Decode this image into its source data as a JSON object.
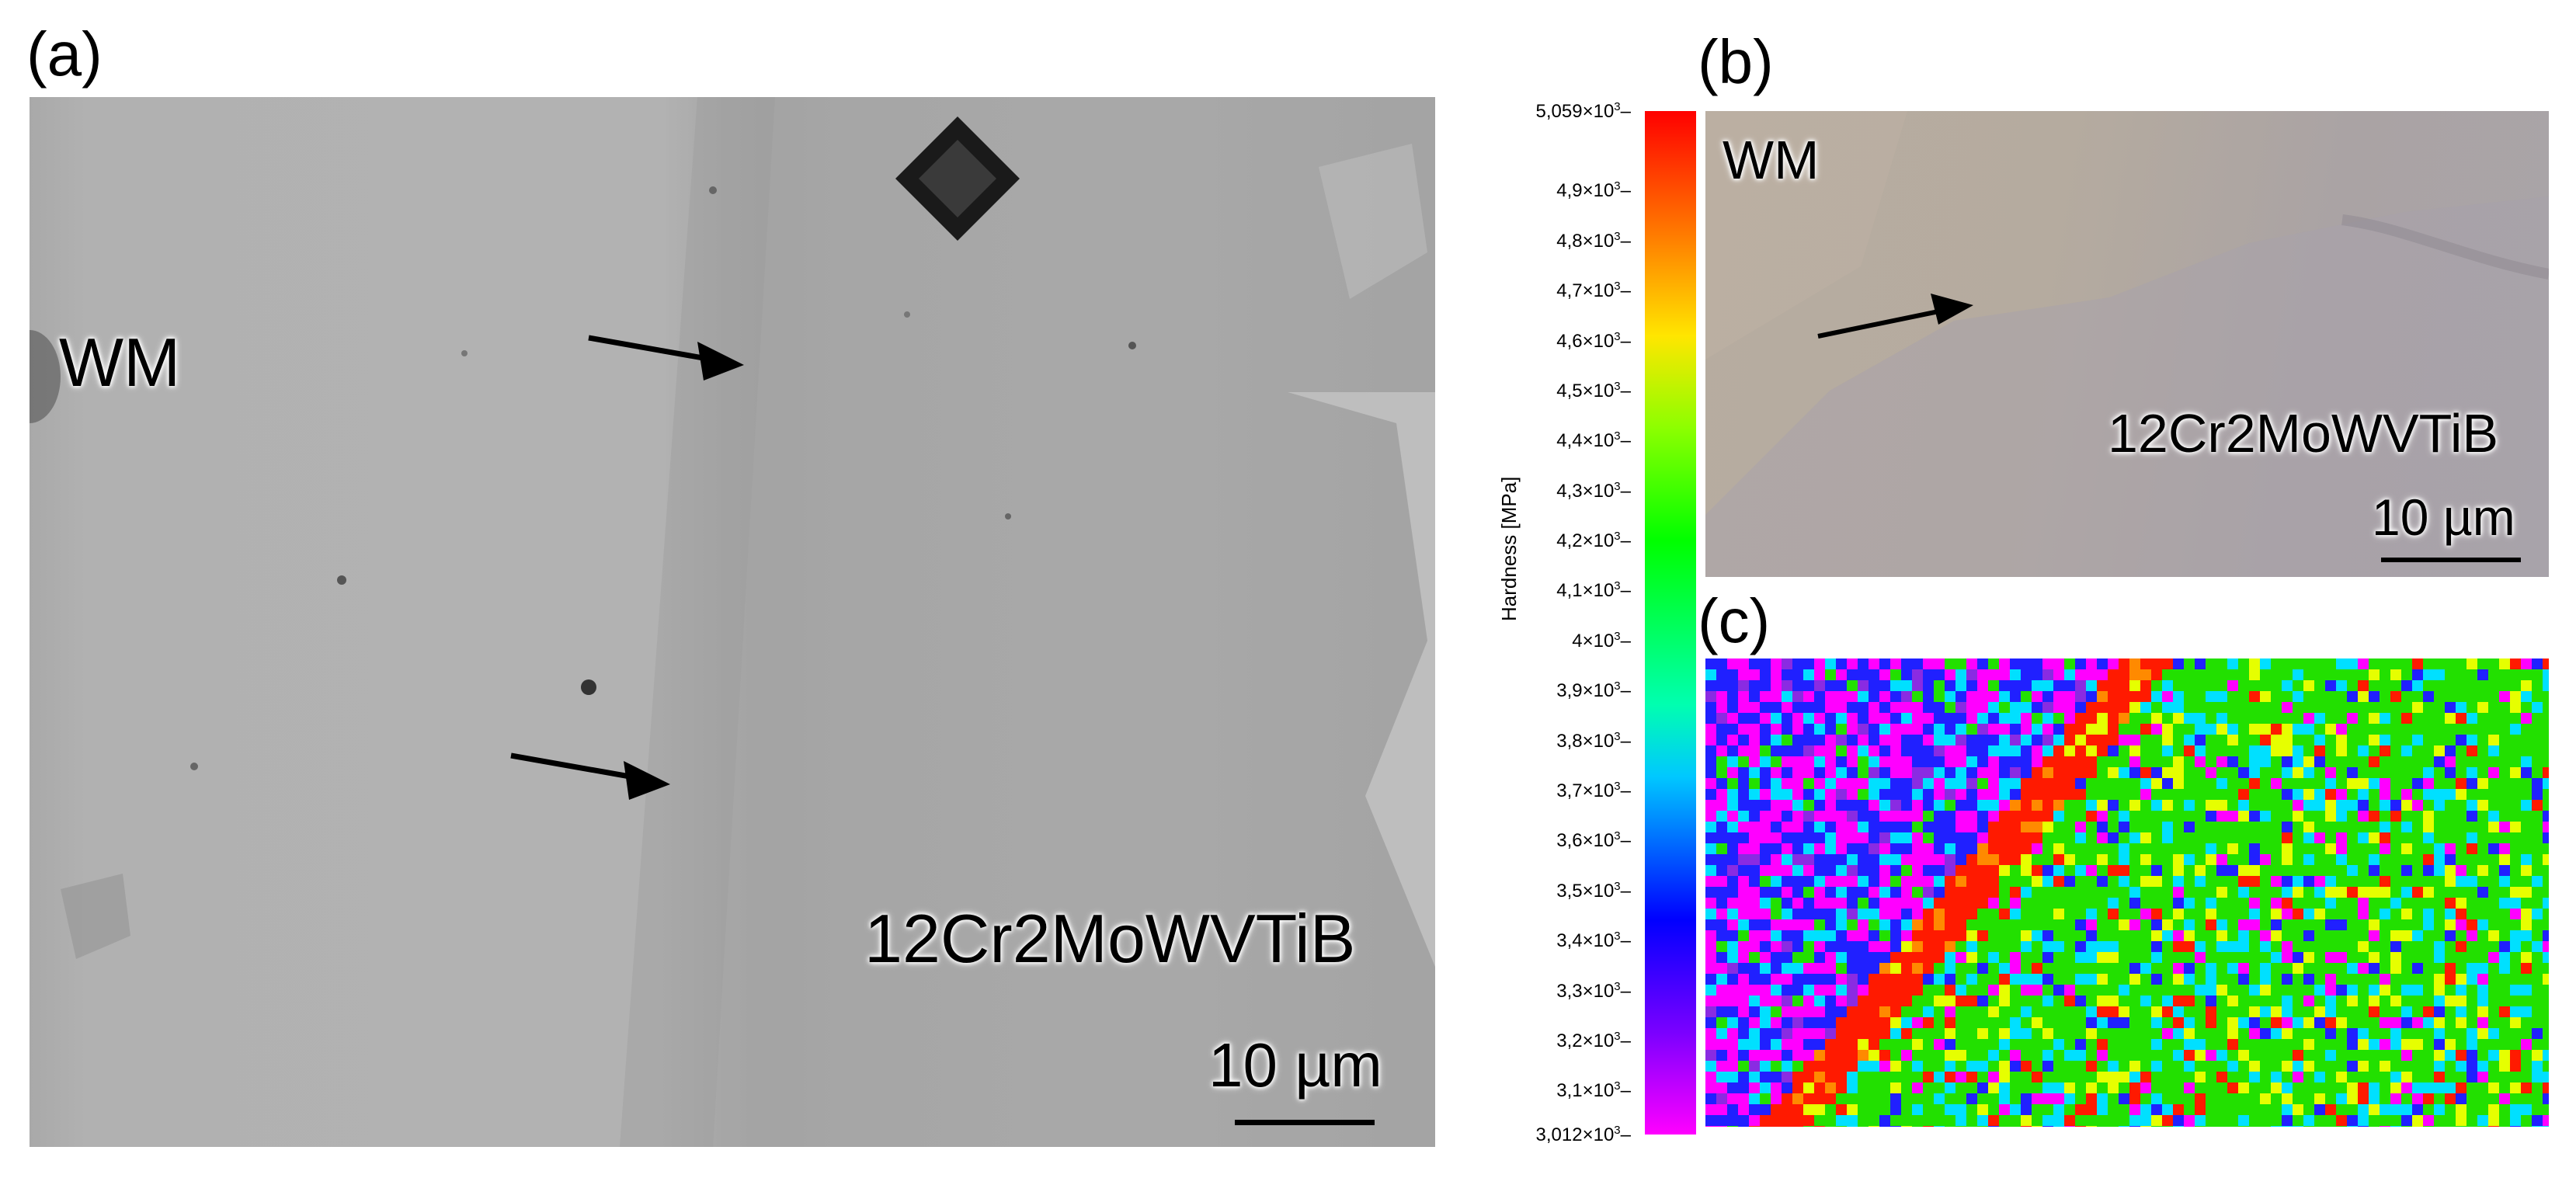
{
  "panels": {
    "a": {
      "label": "(a)",
      "region_label": "WM",
      "alloy_label": "12Cr2MoWVTiB",
      "scale_label": "10 µm"
    },
    "b": {
      "label": "(b)",
      "region_label": "WM",
      "alloy_label": "12Cr2MoWVTiB",
      "scale_label": "10 µm"
    },
    "c": {
      "label": "(c)"
    }
  },
  "colorbar": {
    "title": "Hardness [MPa]",
    "ticks": [
      {
        "base": "5,059",
        "exp": "3"
      },
      {
        "base": "4,9",
        "exp": "3"
      },
      {
        "base": "4,8",
        "exp": "3"
      },
      {
        "base": "4,7",
        "exp": "3"
      },
      {
        "base": "4,6",
        "exp": "3"
      },
      {
        "base": "4,5",
        "exp": "3"
      },
      {
        "base": "4,4",
        "exp": "3"
      },
      {
        "base": "4,3",
        "exp": "3"
      },
      {
        "base": "4,2",
        "exp": "3"
      },
      {
        "base": "4,1",
        "exp": "3"
      },
      {
        "base": "4",
        "exp": "3"
      },
      {
        "base": "3,9",
        "exp": "3"
      },
      {
        "base": "3,8",
        "exp": "3"
      },
      {
        "base": "3,7",
        "exp": "3"
      },
      {
        "base": "3,6",
        "exp": "3"
      },
      {
        "base": "3,5",
        "exp": "3"
      },
      {
        "base": "3,4",
        "exp": "3"
      },
      {
        "base": "3,3",
        "exp": "3"
      },
      {
        "base": "3,2",
        "exp": "3"
      },
      {
        "base": "3,1",
        "exp": "3"
      },
      {
        "base": "3,012",
        "exp": "3"
      }
    ],
    "tick_values": [
      5059,
      4900,
      4800,
      4700,
      4600,
      4500,
      4400,
      4300,
      4200,
      4100,
      4000,
      3900,
      3800,
      3700,
      3600,
      3500,
      3400,
      3300,
      3200,
      3100,
      3012
    ],
    "min": 3012,
    "max": 5059,
    "times_sign": "×10"
  }
}
